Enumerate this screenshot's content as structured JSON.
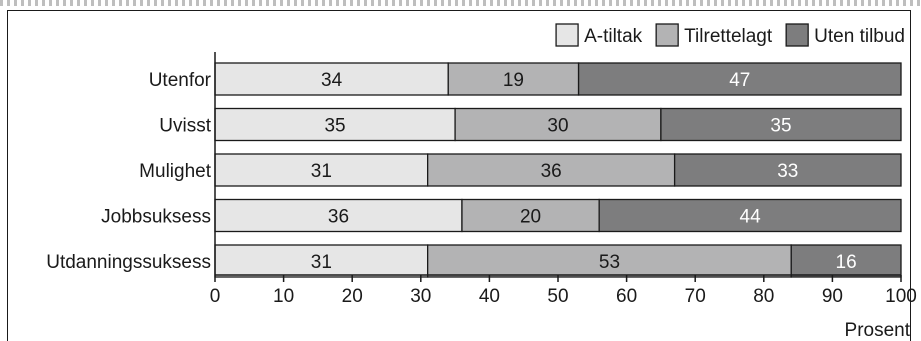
{
  "chart_data": {
    "type": "bar",
    "orientation": "horizontal",
    "stacked": true,
    "categories": [
      "Utenfor",
      "Uvisst",
      "Mulighet",
      "Jobbsuksess",
      "Utdanningssuksess"
    ],
    "series": [
      {
        "name": "A-tiltak",
        "values": [
          34,
          35,
          31,
          36,
          31
        ],
        "color": "#e6e6e6",
        "label_color": "#1a1a1a"
      },
      {
        "name": "Tilrettelagt",
        "values": [
          19,
          30,
          36,
          20,
          53
        ],
        "color": "#b3b3b4",
        "label_color": "#1a1a1a"
      },
      {
        "name": "Uten tilbud",
        "values": [
          47,
          35,
          33,
          44,
          16
        ],
        "color": "#7d7d7e",
        "label_color": "#ffffff"
      }
    ],
    "x_ticks": [
      0,
      10,
      20,
      30,
      40,
      50,
      60,
      70,
      80,
      90,
      100
    ],
    "xlim": [
      0,
      100
    ],
    "xlabel": "Prosent",
    "legend_position": "top-right",
    "grid": false
  }
}
